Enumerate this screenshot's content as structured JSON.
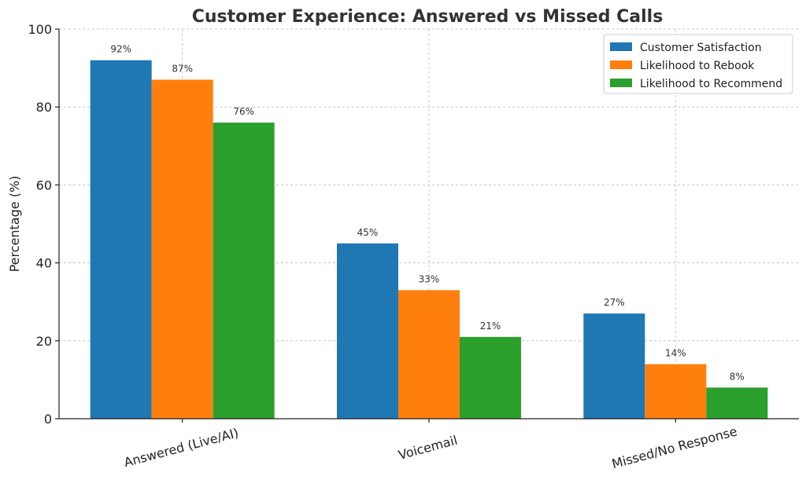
{
  "chart_data": {
    "type": "bar",
    "title": "Customer Experience: Answered vs Missed Calls",
    "ylabel": "Percentage (%)",
    "xlabel": "",
    "ylim": [
      0,
      100
    ],
    "yticks": [
      0,
      20,
      40,
      60,
      80,
      100
    ],
    "categories": [
      "Answered (Live/AI)",
      "Voicemail",
      "Missed/No Response"
    ],
    "series": [
      {
        "name": "Customer Satisfaction",
        "color": "#1f77b4",
        "values": [
          92,
          45,
          27
        ],
        "labels": [
          "92%",
          "45%",
          "27%"
        ]
      },
      {
        "name": "Likelihood to Rebook",
        "color": "#ff7f0e",
        "values": [
          87,
          33,
          14
        ],
        "labels": [
          "87%",
          "33%",
          "14%"
        ]
      },
      {
        "name": "Likelihood to Recommend",
        "color": "#2ca02c",
        "values": [
          76,
          21,
          8
        ],
        "labels": [
          "76%",
          "21%",
          "8%"
        ]
      }
    ],
    "grid": true,
    "legend_position": "top-right"
  }
}
